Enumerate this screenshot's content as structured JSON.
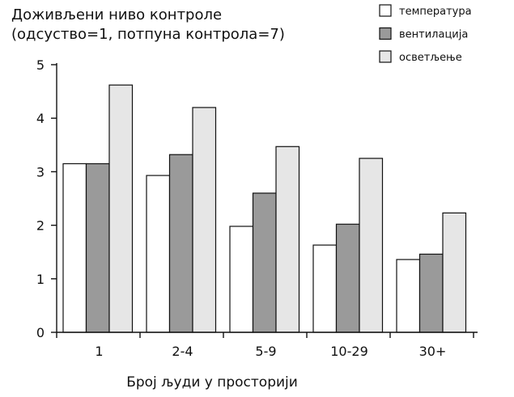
{
  "chart_data": {
    "type": "bar",
    "title_lines": [
      "Доживљени ниво контроле",
      "(одсуство=1, потпуна контрола=7)"
    ],
    "xlabel": "Број људи у просторији",
    "ylabel": "",
    "categories": [
      "1",
      "2-4",
      "5-9",
      "10-29",
      "30+"
    ],
    "yticks": [
      "0",
      "1",
      "2",
      "3",
      "4",
      "5"
    ],
    "ylim": [
      0,
      5
    ],
    "legend_position": "top-right",
    "series": [
      {
        "name": "температура",
        "color": "#ffffff",
        "values": [
          3.15,
          2.93,
          1.98,
          1.63,
          1.36
        ]
      },
      {
        "name": "вентилација",
        "color": "#9a9a9a",
        "values": [
          3.15,
          3.32,
          2.6,
          2.02,
          1.46
        ]
      },
      {
        "name": "осветљење",
        "color": "#e6e6e6",
        "values": [
          4.62,
          4.2,
          3.47,
          3.25,
          2.23
        ]
      }
    ]
  }
}
